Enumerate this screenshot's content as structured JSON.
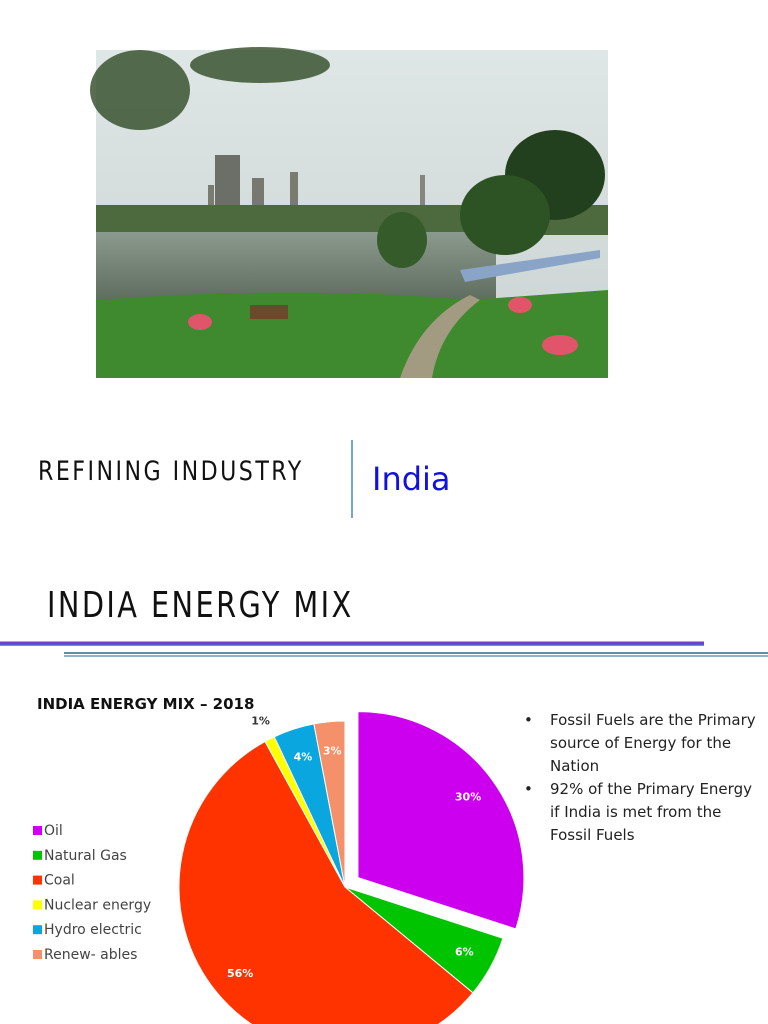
{
  "slide1": {
    "title": "REFINING INDUSTRY",
    "subtitle": "India"
  },
  "slide2": {
    "title": "INDIA ENERGY MIX",
    "bullets": [
      "Fossil Fuels are the Primary source of Energy for the Nation",
      "92% of the Primary Energy if India is met from the Fossil Fuels"
    ],
    "chart_data": {
      "type": "pie",
      "title": "INDIA ENERGY MIX – 2018",
      "categories": [
        "Oil",
        "Natural Gas",
        "Coal",
        "Nuclear energy",
        "Hydro electric",
        "Renew- ables"
      ],
      "values": [
        30,
        6,
        56,
        1,
        4,
        3
      ],
      "value_labels": [
        "30%",
        "6%",
        "56%",
        "1%",
        "4%",
        "3%"
      ],
      "colors": [
        "#cc00ee",
        "#00c400",
        "#ff3300",
        "#ffff00",
        "#0aa6e0",
        "#f4916a"
      ],
      "exploded": "Oil"
    }
  }
}
